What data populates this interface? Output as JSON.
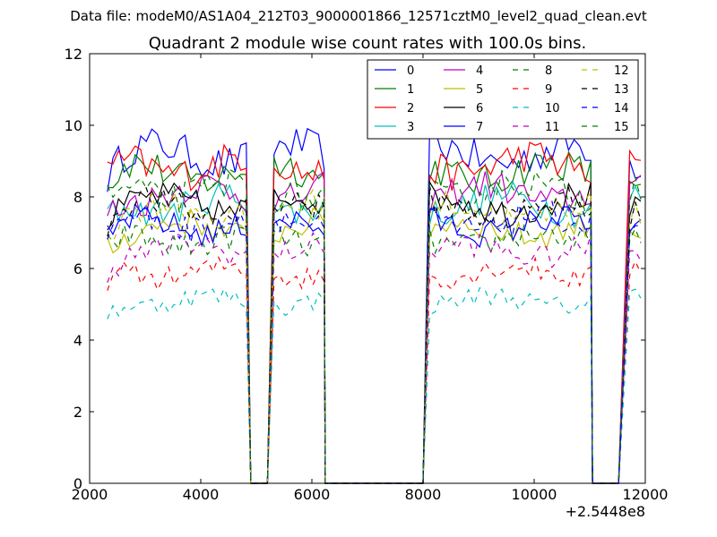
{
  "chart_data": {
    "type": "line",
    "suptitle": "Data file: modeM0/AS1A04_212T03_9000001866_12571cztM0_level2_quad_clean.evt",
    "title": "Quadrant 2 module wise count rates with 100.0s bins.",
    "xlabel": "",
    "ylabel": "",
    "x_offset_label": "+2.5448e8",
    "xlim": [
      2000,
      12000
    ],
    "ylim": [
      0,
      12
    ],
    "xticks": [
      2000,
      4000,
      6000,
      8000,
      10000,
      12000
    ],
    "yticks": [
      0,
      2,
      4,
      6,
      8,
      10,
      12
    ],
    "xtick_labels": [
      "2000",
      "4000",
      "6000",
      "8000",
      "10000",
      "12000"
    ],
    "ytick_labels": [
      "0",
      "2",
      "4",
      "6",
      "8",
      "10",
      "12"
    ],
    "grid": false,
    "legend_position": "top-right",
    "legend_columns": 4,
    "segments": [
      {
        "x_start": 2320,
        "x_end": 4820,
        "zero_after": 4900
      },
      {
        "x_start": 5320,
        "x_end": 6220,
        "zero_before": 5200,
        "zero_after": 6240
      },
      {
        "x_start": 8120,
        "x_end": 11020,
        "zero_before": 8000,
        "zero_after": 11050
      },
      {
        "x_start": 11720,
        "x_end": 11920,
        "zero_before": 11520
      }
    ],
    "series": [
      {
        "name": "0",
        "color": "#0000ff",
        "style": "solid",
        "level": 9.2
      },
      {
        "name": "1",
        "color": "#008000",
        "style": "solid",
        "level": 8.7
      },
      {
        "name": "2",
        "color": "#ff0000",
        "style": "solid",
        "level": 8.9
      },
      {
        "name": "3",
        "color": "#00bfbf",
        "style": "solid",
        "level": 7.8
      },
      {
        "name": "4",
        "color": "#bf00bf",
        "style": "solid",
        "level": 8.1
      },
      {
        "name": "5",
        "color": "#bfbf00",
        "style": "solid",
        "level": 7.1
      },
      {
        "name": "6",
        "color": "#000000",
        "style": "solid",
        "level": 7.8
      },
      {
        "name": "7",
        "color": "#0000ff",
        "style": "solid",
        "level": 7.2
      },
      {
        "name": "8",
        "color": "#008000",
        "style": "dashed",
        "level": 6.8
      },
      {
        "name": "9",
        "color": "#ff0000",
        "style": "dashed",
        "level": 5.9
      },
      {
        "name": "10",
        "color": "#00bfbf",
        "style": "dashed",
        "level": 5.1
      },
      {
        "name": "11",
        "color": "#bf00bf",
        "style": "dashed",
        "level": 6.5
      },
      {
        "name": "12",
        "color": "#bfbf00",
        "style": "dashed",
        "level": 7.6
      },
      {
        "name": "13",
        "color": "#000000",
        "style": "dashed",
        "level": 7.7
      },
      {
        "name": "14",
        "color": "#0000ff",
        "style": "dashed",
        "level": 7.3
      },
      {
        "name": "15",
        "color": "#008000",
        "style": "dashed",
        "level": 8.2
      }
    ]
  }
}
